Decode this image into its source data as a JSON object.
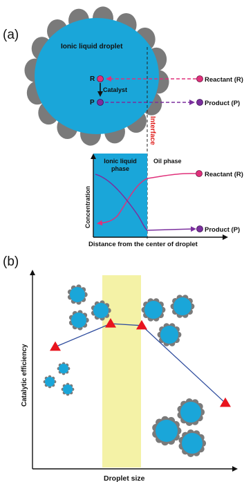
{
  "panel_a": {
    "label": "(a)",
    "droplet_label": "Ionic liquid droplet",
    "r_label": "R",
    "p_label": "P",
    "catalyst_label": "Catalyst",
    "reactant_label": "Reactant (R)",
    "product_label": "Product (P)",
    "interface_label": "Interface",
    "ionic_phase_line1": "Ionic liquid",
    "ionic_phase_line2": "phase",
    "oil_phase_label": "Oil phase",
    "conc_ylabel": "Concentration",
    "conc_reactant_label": "Reactant (R)",
    "conc_product_label": "Product (P)",
    "conc_xlabel": "Distance from the center of droplet"
  },
  "panel_b": {
    "label": "(b)",
    "ylabel": "Catalytic efficiency",
    "xlabel": "Droplet size"
  },
  "colors": {
    "droplet": "#1aa6d9",
    "particle": "#7a7a7a",
    "reactant": "#e0307a",
    "product": "#7b2f9e",
    "interface_text": "#e0201e",
    "highlight": "#f4f2a6",
    "marker": "#e8141e",
    "line": "#2f4d9e"
  },
  "chart_data": {
    "type": "line",
    "x": [
      1,
      2,
      3,
      4
    ],
    "y": [
      0.63,
      0.75,
      0.74,
      0.34
    ],
    "xlabel": "Droplet size",
    "ylabel": "Catalytic efficiency",
    "title": "",
    "grid": false,
    "highlight_band_x": [
      1.85,
      2.35
    ]
  }
}
